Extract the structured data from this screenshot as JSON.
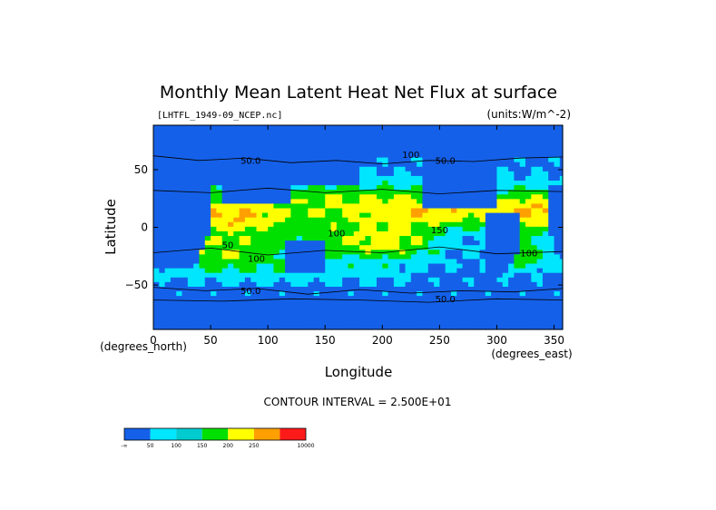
{
  "chart_data": {
    "type": "heatmap",
    "title": "Monthly Mean Latent Heat Net Flux at surface",
    "subtitle_left": "[LHTFL_1949-09_NCEP.nc]",
    "subtitle_right": "(units:W/m^-2)",
    "xlabel": "Longitude",
    "ylabel": "Latitude",
    "x_units": "(degrees_east)",
    "y_units": "(degrees_north)",
    "xlim": [
      0,
      357.5
    ],
    "ylim": [
      -88.5,
      88.5
    ],
    "xticks": [
      0,
      50,
      100,
      150,
      200,
      250,
      300,
      350
    ],
    "yticks": [
      -50,
      0,
      50
    ],
    "ytick_labels": [
      "−50",
      "0",
      "50"
    ],
    "contour_interval": "CONTOUR INTERVAL = 2.500E+01",
    "contour_labels": [
      {
        "text": "50.0",
        "lon": 85,
        "lat": 55
      },
      {
        "text": "50.0",
        "lon": 255,
        "lat": 55
      },
      {
        "text": "100",
        "lon": 225,
        "lat": 60
      },
      {
        "text": "50",
        "lon": 65,
        "lat": -18
      },
      {
        "text": "100",
        "lon": 90,
        "lat": -30
      },
      {
        "text": "100",
        "lon": 160,
        "lat": -8
      },
      {
        "text": "150",
        "lon": 250,
        "lat": -5
      },
      {
        "text": "100",
        "lon": 328,
        "lat": -25
      },
      {
        "text": "50.0",
        "lon": 85,
        "lat": -58
      },
      {
        "text": "50.0",
        "lon": 255,
        "lat": -65
      }
    ],
    "colorbar": {
      "colors": [
        "#1560e8",
        "#00e6ff",
        "#00ccd0",
        "#00e000",
        "#ffff00",
        "#ffa000",
        "#ff1a1a"
      ],
      "labels": [
        "-∞",
        "50",
        "100",
        "150",
        "200",
        "250",
        "10000"
      ]
    }
  }
}
